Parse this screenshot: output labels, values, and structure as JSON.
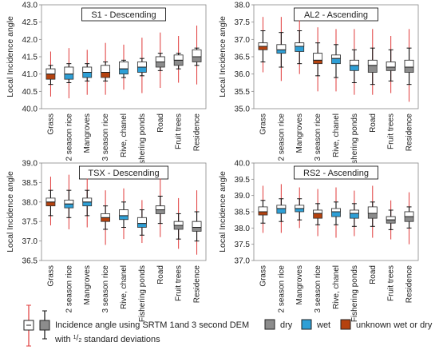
{
  "colors": {
    "dry": "#8c8c8c",
    "wet": "#2e9fd6",
    "unknown": "#b5420f",
    "whisker_dem1": "#e03a3a",
    "whisker_dem3": "#111111",
    "title_box": "#000000"
  },
  "chart_data": [
    {
      "type": "boxplot",
      "title": "S1 - Descending",
      "ylabel": "Local Incidence angle",
      "ylim": [
        40.0,
        43.0
      ],
      "yticks": [
        "40.0",
        "40.5",
        "41.0",
        "41.5",
        "42.0",
        "42.5",
        "43.0"
      ],
      "categories": [
        "Grass",
        "2 season rice",
        "Mangroves",
        "3 season rice",
        "Rive, chanel",
        "Fishering ponds",
        "Road",
        "Fruit trees",
        "Residence"
      ],
      "classes": [
        "unknown",
        "wet",
        "wet",
        "unknown",
        "wet",
        "wet",
        "dry",
        "dry",
        "dry"
      ],
      "dem1": [
        {
          "min": 40.35,
          "q1": 40.85,
          "med": 41.0,
          "q3": 41.15,
          "max": 41.65
        },
        {
          "min": 40.3,
          "q1": 40.85,
          "med": 41.0,
          "q3": 41.2,
          "max": 41.75
        },
        {
          "min": 40.4,
          "q1": 40.9,
          "med": 41.05,
          "q3": 41.2,
          "max": 41.7
        },
        {
          "min": 40.4,
          "q1": 40.9,
          "med": 41.05,
          "q3": 41.25,
          "max": 41.9
        },
        {
          "min": 40.55,
          "q1": 41.0,
          "med": 41.15,
          "q3": 41.35,
          "max": 41.85
        },
        {
          "min": 40.45,
          "q1": 41.05,
          "med": 41.2,
          "q3": 41.35,
          "max": 42.05
        },
        {
          "min": 40.6,
          "q1": 41.2,
          "med": 41.35,
          "q3": 41.5,
          "max": 42.2
        },
        {
          "min": 40.75,
          "q1": 41.25,
          "med": 41.4,
          "q3": 41.55,
          "max": 42.1
        },
        {
          "min": 40.7,
          "q1": 41.35,
          "med": 41.5,
          "q3": 41.7,
          "max": 42.4
        }
      ],
      "dem3": [
        {
          "min": 40.7,
          "max": 41.25
        },
        {
          "min": 40.75,
          "max": 41.3
        },
        {
          "min": 40.8,
          "max": 41.3
        },
        {
          "min": 40.8,
          "max": 41.35
        },
        {
          "min": 40.9,
          "max": 41.4
        },
        {
          "min": 40.95,
          "max": 41.45
        },
        {
          "min": 41.1,
          "max": 41.6
        },
        {
          "min": 41.15,
          "max": 41.6
        },
        {
          "min": 41.25,
          "max": 41.75
        }
      ]
    },
    {
      "type": "boxplot",
      "title": "AL2 - Ascending",
      "ylabel": "Local Incidence angle",
      "ylim": [
        35.0,
        38.0
      ],
      "yticks": [
        "35.0",
        "35.5",
        "36.0",
        "36.5",
        "37.0",
        "37.5",
        "38.0"
      ],
      "categories": [
        "Grass",
        "2 season rice",
        "Mangroves",
        "3 season rice",
        "Rive, chanel",
        "Fishering ponds",
        "Road",
        "Fruit trees",
        "Residence"
      ],
      "classes": [
        "unknown",
        "wet",
        "wet",
        "unknown",
        "wet",
        "wet",
        "dry",
        "dry",
        "dry"
      ],
      "dem1": [
        {
          "min": 36.05,
          "q1": 36.7,
          "med": 36.8,
          "q3": 36.9,
          "max": 37.65
        },
        {
          "min": 35.8,
          "q1": 36.6,
          "med": 36.7,
          "q3": 36.85,
          "max": 37.65
        },
        {
          "min": 36.0,
          "q1": 36.65,
          "med": 36.8,
          "q3": 36.9,
          "max": 37.55
        },
        {
          "min": 35.5,
          "q1": 36.3,
          "med": 36.4,
          "q3": 36.6,
          "max": 37.35
        },
        {
          "min": 35.5,
          "q1": 36.3,
          "med": 36.45,
          "q3": 36.55,
          "max": 37.3
        },
        {
          "min": 35.4,
          "q1": 36.1,
          "med": 36.25,
          "q3": 36.4,
          "max": 37.3
        },
        {
          "min": 35.4,
          "q1": 36.05,
          "med": 36.25,
          "q3": 36.4,
          "max": 37.3
        },
        {
          "min": 35.45,
          "q1": 36.1,
          "med": 36.2,
          "q3": 36.35,
          "max": 37.1
        },
        {
          "min": 35.2,
          "q1": 36.05,
          "med": 36.2,
          "q3": 36.4,
          "max": 37.3
        }
      ],
      "dem3": [
        {
          "min": 36.35,
          "max": 37.25
        },
        {
          "min": 36.2,
          "max": 37.2
        },
        {
          "min": 36.3,
          "max": 37.25
        },
        {
          "min": 35.95,
          "max": 36.9
        },
        {
          "min": 35.9,
          "max": 36.85
        },
        {
          "min": 35.75,
          "max": 36.7
        },
        {
          "min": 35.7,
          "max": 36.75
        },
        {
          "min": 35.8,
          "max": 36.7
        },
        {
          "min": 35.7,
          "max": 36.75
        }
      ]
    },
    {
      "type": "boxplot",
      "title": "TSX - Descending",
      "ylabel": "Local Incidence angle",
      "ylim": [
        36.5,
        39.0
      ],
      "yticks": [
        "36.5",
        "37.0",
        "37.5",
        "38.0",
        "38.5",
        "39.0"
      ],
      "categories": [
        "Grass",
        "2 season rice",
        "Mangroves",
        "3 season rice",
        "Rive, chanel",
        "Fishering ponds",
        "Road",
        "Fruit trees",
        "Residence"
      ],
      "classes": [
        "unknown",
        "wet",
        "wet",
        "unknown",
        "wet",
        "wet",
        "dry",
        "dry",
        "dry"
      ],
      "dem1": [
        {
          "min": 37.4,
          "q1": 37.9,
          "med": 38.0,
          "q3": 38.1,
          "max": 38.65
        },
        {
          "min": 37.3,
          "q1": 37.85,
          "med": 37.95,
          "q3": 38.05,
          "max": 38.7
        },
        {
          "min": 37.35,
          "q1": 37.9,
          "med": 38.0,
          "q3": 38.1,
          "max": 38.6
        },
        {
          "min": 36.9,
          "q1": 37.5,
          "med": 37.6,
          "q3": 37.7,
          "max": 38.3
        },
        {
          "min": 37.05,
          "q1": 37.55,
          "med": 37.65,
          "q3": 37.8,
          "max": 38.35
        },
        {
          "min": 36.95,
          "q1": 37.35,
          "med": 37.45,
          "q3": 37.6,
          "max": 38.05
        },
        {
          "min": 37.1,
          "q1": 37.7,
          "med": 37.8,
          "q3": 37.9,
          "max": 38.6
        },
        {
          "min": 36.8,
          "q1": 37.3,
          "med": 37.4,
          "q3": 37.5,
          "max": 38.1
        },
        {
          "min": 36.65,
          "q1": 37.25,
          "med": 37.35,
          "q3": 37.5,
          "max": 38.3
        }
      ],
      "dem3": [
        {
          "min": 37.65,
          "max": 38.3
        },
        {
          "min": 37.6,
          "max": 38.3
        },
        {
          "min": 37.65,
          "max": 38.3
        },
        {
          "min": 37.3,
          "max": 37.9
        },
        {
          "min": 37.35,
          "max": 38.0
        },
        {
          "min": 37.15,
          "max": 37.8
        },
        {
          "min": 37.45,
          "max": 38.15
        },
        {
          "min": 37.05,
          "max": 37.7
        },
        {
          "min": 37.0,
          "max": 37.75
        }
      ]
    },
    {
      "type": "boxplot",
      "title": "RS2 - Ascending",
      "ylabel": "Local Incidence angle",
      "ylim": [
        37.0,
        40.0
      ],
      "yticks": [
        "37.0",
        "37.5",
        "38.0",
        "38.5",
        "39.0",
        "39.5",
        "40.0"
      ],
      "categories": [
        "Grass",
        "2 season rice",
        "Mangroves",
        "3 season rice",
        "Rive, chanel",
        "Fishering ponds",
        "Road",
        "Fruit trees",
        "Residence"
      ],
      "classes": [
        "unknown",
        "wet",
        "wet",
        "unknown",
        "wet",
        "wet",
        "dry",
        "dry",
        "dry"
      ],
      "dem1": [
        {
          "min": 37.85,
          "q1": 38.4,
          "med": 38.5,
          "q3": 38.65,
          "max": 39.3
        },
        {
          "min": 37.85,
          "q1": 38.45,
          "med": 38.6,
          "q3": 38.7,
          "max": 39.35
        },
        {
          "min": 38.0,
          "q1": 38.5,
          "med": 38.6,
          "q3": 38.7,
          "max": 39.25
        },
        {
          "min": 37.75,
          "q1": 38.3,
          "med": 38.45,
          "q3": 38.55,
          "max": 39.2
        },
        {
          "min": 37.7,
          "q1": 38.35,
          "med": 38.5,
          "q3": 38.6,
          "max": 39.25
        },
        {
          "min": 37.75,
          "q1": 38.3,
          "med": 38.45,
          "q3": 38.55,
          "max": 39.15
        },
        {
          "min": 37.7,
          "q1": 38.3,
          "med": 38.45,
          "q3": 38.65,
          "max": 39.3
        },
        {
          "min": 37.65,
          "q1": 38.15,
          "med": 38.25,
          "q3": 38.35,
          "max": 38.85
        },
        {
          "min": 37.5,
          "q1": 38.2,
          "med": 38.35,
          "q3": 38.5,
          "max": 39.1
        }
      ],
      "dem3": [
        {
          "min": 38.15,
          "max": 38.85
        },
        {
          "min": 38.2,
          "max": 38.9
        },
        {
          "min": 38.25,
          "max": 38.9
        },
        {
          "min": 38.1,
          "max": 38.75
        },
        {
          "min": 38.1,
          "max": 38.8
        },
        {
          "min": 38.05,
          "max": 38.75
        },
        {
          "min": 38.05,
          "max": 38.8
        },
        {
          "min": 37.95,
          "max": 38.55
        },
        {
          "min": 38.0,
          "max": 38.65
        }
      ]
    }
  ],
  "legend": {
    "dem_text": "Incidence angle using SRTM 1and 3 second DEM",
    "std_prefix": "with ",
    "std_num": "1",
    "std_den": "2",
    "std_suffix": " standard deviations",
    "dry_label": "dry",
    "wet_label": "wet",
    "unknown_label": "unknown wet or dry"
  }
}
